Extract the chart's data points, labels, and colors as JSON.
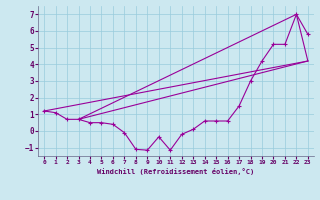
{
  "xlabel": "Windchill (Refroidissement éolien,°C)",
  "background_color": "#cce8f0",
  "grid_color": "#99ccdd",
  "line_color": "#990099",
  "axis_color": "#660066",
  "xlim": [
    -0.5,
    23.5
  ],
  "ylim": [
    -1.5,
    7.5
  ],
  "xticks": [
    0,
    1,
    2,
    3,
    4,
    5,
    6,
    7,
    8,
    9,
    10,
    11,
    12,
    13,
    14,
    15,
    16,
    17,
    18,
    19,
    20,
    21,
    22,
    23
  ],
  "yticks": [
    -1,
    0,
    1,
    2,
    3,
    4,
    5,
    6,
    7
  ],
  "line1_x": [
    0,
    1,
    2,
    3,
    4,
    5,
    6,
    7,
    8,
    9,
    10,
    11,
    12,
    13,
    14,
    15,
    16,
    17,
    18,
    19,
    20,
    21,
    22,
    23
  ],
  "line1_y": [
    1.2,
    1.1,
    0.7,
    0.7,
    0.5,
    0.5,
    0.4,
    -0.1,
    -1.1,
    -1.15,
    -0.35,
    -1.15,
    -0.2,
    0.1,
    0.6,
    0.6,
    0.6,
    1.5,
    3.0,
    4.2,
    5.2,
    5.2,
    7.0,
    5.8
  ],
  "line2_x": [
    0,
    23
  ],
  "line2_y": [
    1.2,
    4.2
  ],
  "line3_x": [
    3,
    22,
    23
  ],
  "line3_y": [
    0.7,
    7.0,
    4.2
  ],
  "line4_x": [
    3,
    23
  ],
  "line4_y": [
    0.7,
    4.2
  ]
}
